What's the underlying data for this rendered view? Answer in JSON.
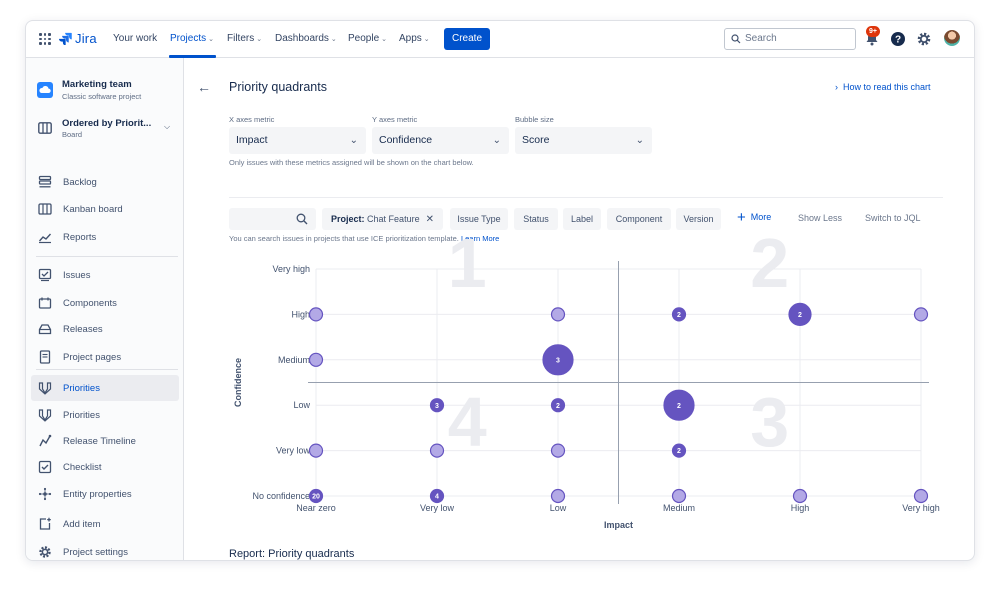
{
  "topnav": {
    "logo_text": "Jira",
    "items": [
      {
        "label": "Your work",
        "has_chevron": false
      },
      {
        "label": "Projects",
        "has_chevron": true,
        "active": true
      },
      {
        "label": "Filters",
        "has_chevron": true
      },
      {
        "label": "Dashboards",
        "has_chevron": true
      },
      {
        "label": "People",
        "has_chevron": true
      },
      {
        "label": "Apps",
        "has_chevron": true
      }
    ],
    "create_label": "Create",
    "search_placeholder": "Search",
    "notifications_badge": "9+",
    "accent_color": "#0052cc"
  },
  "sidebar": {
    "project_name": "Marketing team",
    "project_type": "Classic software project",
    "board_name": "Ordered by Priorit...",
    "board_sub": "Board",
    "items": [
      {
        "label": "Backlog",
        "icon": "backlog-icon"
      },
      {
        "label": "Kanban board",
        "icon": "kanban-board-icon"
      },
      {
        "label": "Reports",
        "icon": "reports-icon"
      },
      {
        "label": "Issues",
        "icon": "issues-icon"
      },
      {
        "label": "Components",
        "icon": "components-icon"
      },
      {
        "label": "Releases",
        "icon": "releases-icon"
      },
      {
        "label": "Project pages",
        "icon": "project-pages-icon"
      },
      {
        "label": "Priorities",
        "icon": "priorities-icon",
        "active": true
      },
      {
        "label": "Priorities",
        "icon": "priorities-icon"
      },
      {
        "label": "Release Timeline",
        "icon": "release-timeline-icon"
      },
      {
        "label": "Checklist",
        "icon": "checklist-icon"
      },
      {
        "label": "Entity properties",
        "icon": "entity-properties-icon"
      },
      {
        "label": "Add item",
        "icon": "add-item-icon"
      },
      {
        "label": "Project settings",
        "icon": "gear-icon"
      }
    ]
  },
  "main": {
    "title": "Priority quadrants",
    "help_link": "How to read this chart",
    "x_metric_label": "X axes metric",
    "x_metric_value": "Impact",
    "y_metric_label": "Y axes metric",
    "y_metric_value": "Confidence",
    "size_label": "Bubble size",
    "size_value": "Score",
    "metric_help": "Only issues with these metrics assigned will be shown on the chart below.",
    "filters": {
      "project_key": "Project:",
      "project_value": "Chat Feature",
      "chips": [
        "Issue Type",
        "Status",
        "Label",
        "Component",
        "Version"
      ],
      "more": "More",
      "show_less": "Show Less",
      "switch_jql": "Switch to JQL"
    },
    "filter_help": "You can search issues in projects that use ICE prioritization template.",
    "learn_more": "Learn More",
    "report_title": "Report: Priority quadrants"
  },
  "chart_data": {
    "type": "scatter",
    "xlabel": "Impact",
    "ylabel": "Confidence",
    "x_categories": [
      "Near zero",
      "Very low",
      "Low",
      "Medium",
      "High",
      "Very high"
    ],
    "y_categories": [
      "No confidence",
      "Very low",
      "Low",
      "Medium",
      "High",
      "Very high"
    ],
    "quadrant_labels": [
      "1",
      "2",
      "3",
      "4"
    ],
    "bubble_color": "#6554c0",
    "bubble_fill_light": "#b3a9e6",
    "points": [
      {
        "x": "Near zero",
        "y": "High",
        "count": "",
        "size": 1
      },
      {
        "x": "Low",
        "y": "High",
        "count": "",
        "size": 1
      },
      {
        "x": "Medium",
        "y": "High",
        "count": "2",
        "size": 1
      },
      {
        "x": "High",
        "y": "High",
        "count": "2",
        "size": 2
      },
      {
        "x": "Very high",
        "y": "High",
        "count": "",
        "size": 1
      },
      {
        "x": "Near zero",
        "y": "Medium",
        "count": "",
        "size": 1
      },
      {
        "x": "Low",
        "y": "Medium",
        "count": "3",
        "size": 3
      },
      {
        "x": "Very low",
        "y": "Low",
        "count": "3",
        "size": 1
      },
      {
        "x": "Low",
        "y": "Low",
        "count": "2",
        "size": 1
      },
      {
        "x": "Medium",
        "y": "Low",
        "count": "2",
        "size": 3
      },
      {
        "x": "Near zero",
        "y": "Very low",
        "count": "",
        "size": 1
      },
      {
        "x": "Very low",
        "y": "Very low",
        "count": "",
        "size": 1
      },
      {
        "x": "Low",
        "y": "Very low",
        "count": "",
        "size": 1
      },
      {
        "x": "Medium",
        "y": "Very low",
        "count": "2",
        "size": 1
      },
      {
        "x": "Near zero",
        "y": "No confidence",
        "count": "20",
        "size": 1
      },
      {
        "x": "Very low",
        "y": "No confidence",
        "count": "4",
        "size": 1
      },
      {
        "x": "Low",
        "y": "No confidence",
        "count": "",
        "size": 1
      },
      {
        "x": "Medium",
        "y": "No confidence",
        "count": "",
        "size": 1
      },
      {
        "x": "High",
        "y": "No confidence",
        "count": "",
        "size": 1
      },
      {
        "x": "Very high",
        "y": "No confidence",
        "count": "",
        "size": 1
      }
    ]
  }
}
